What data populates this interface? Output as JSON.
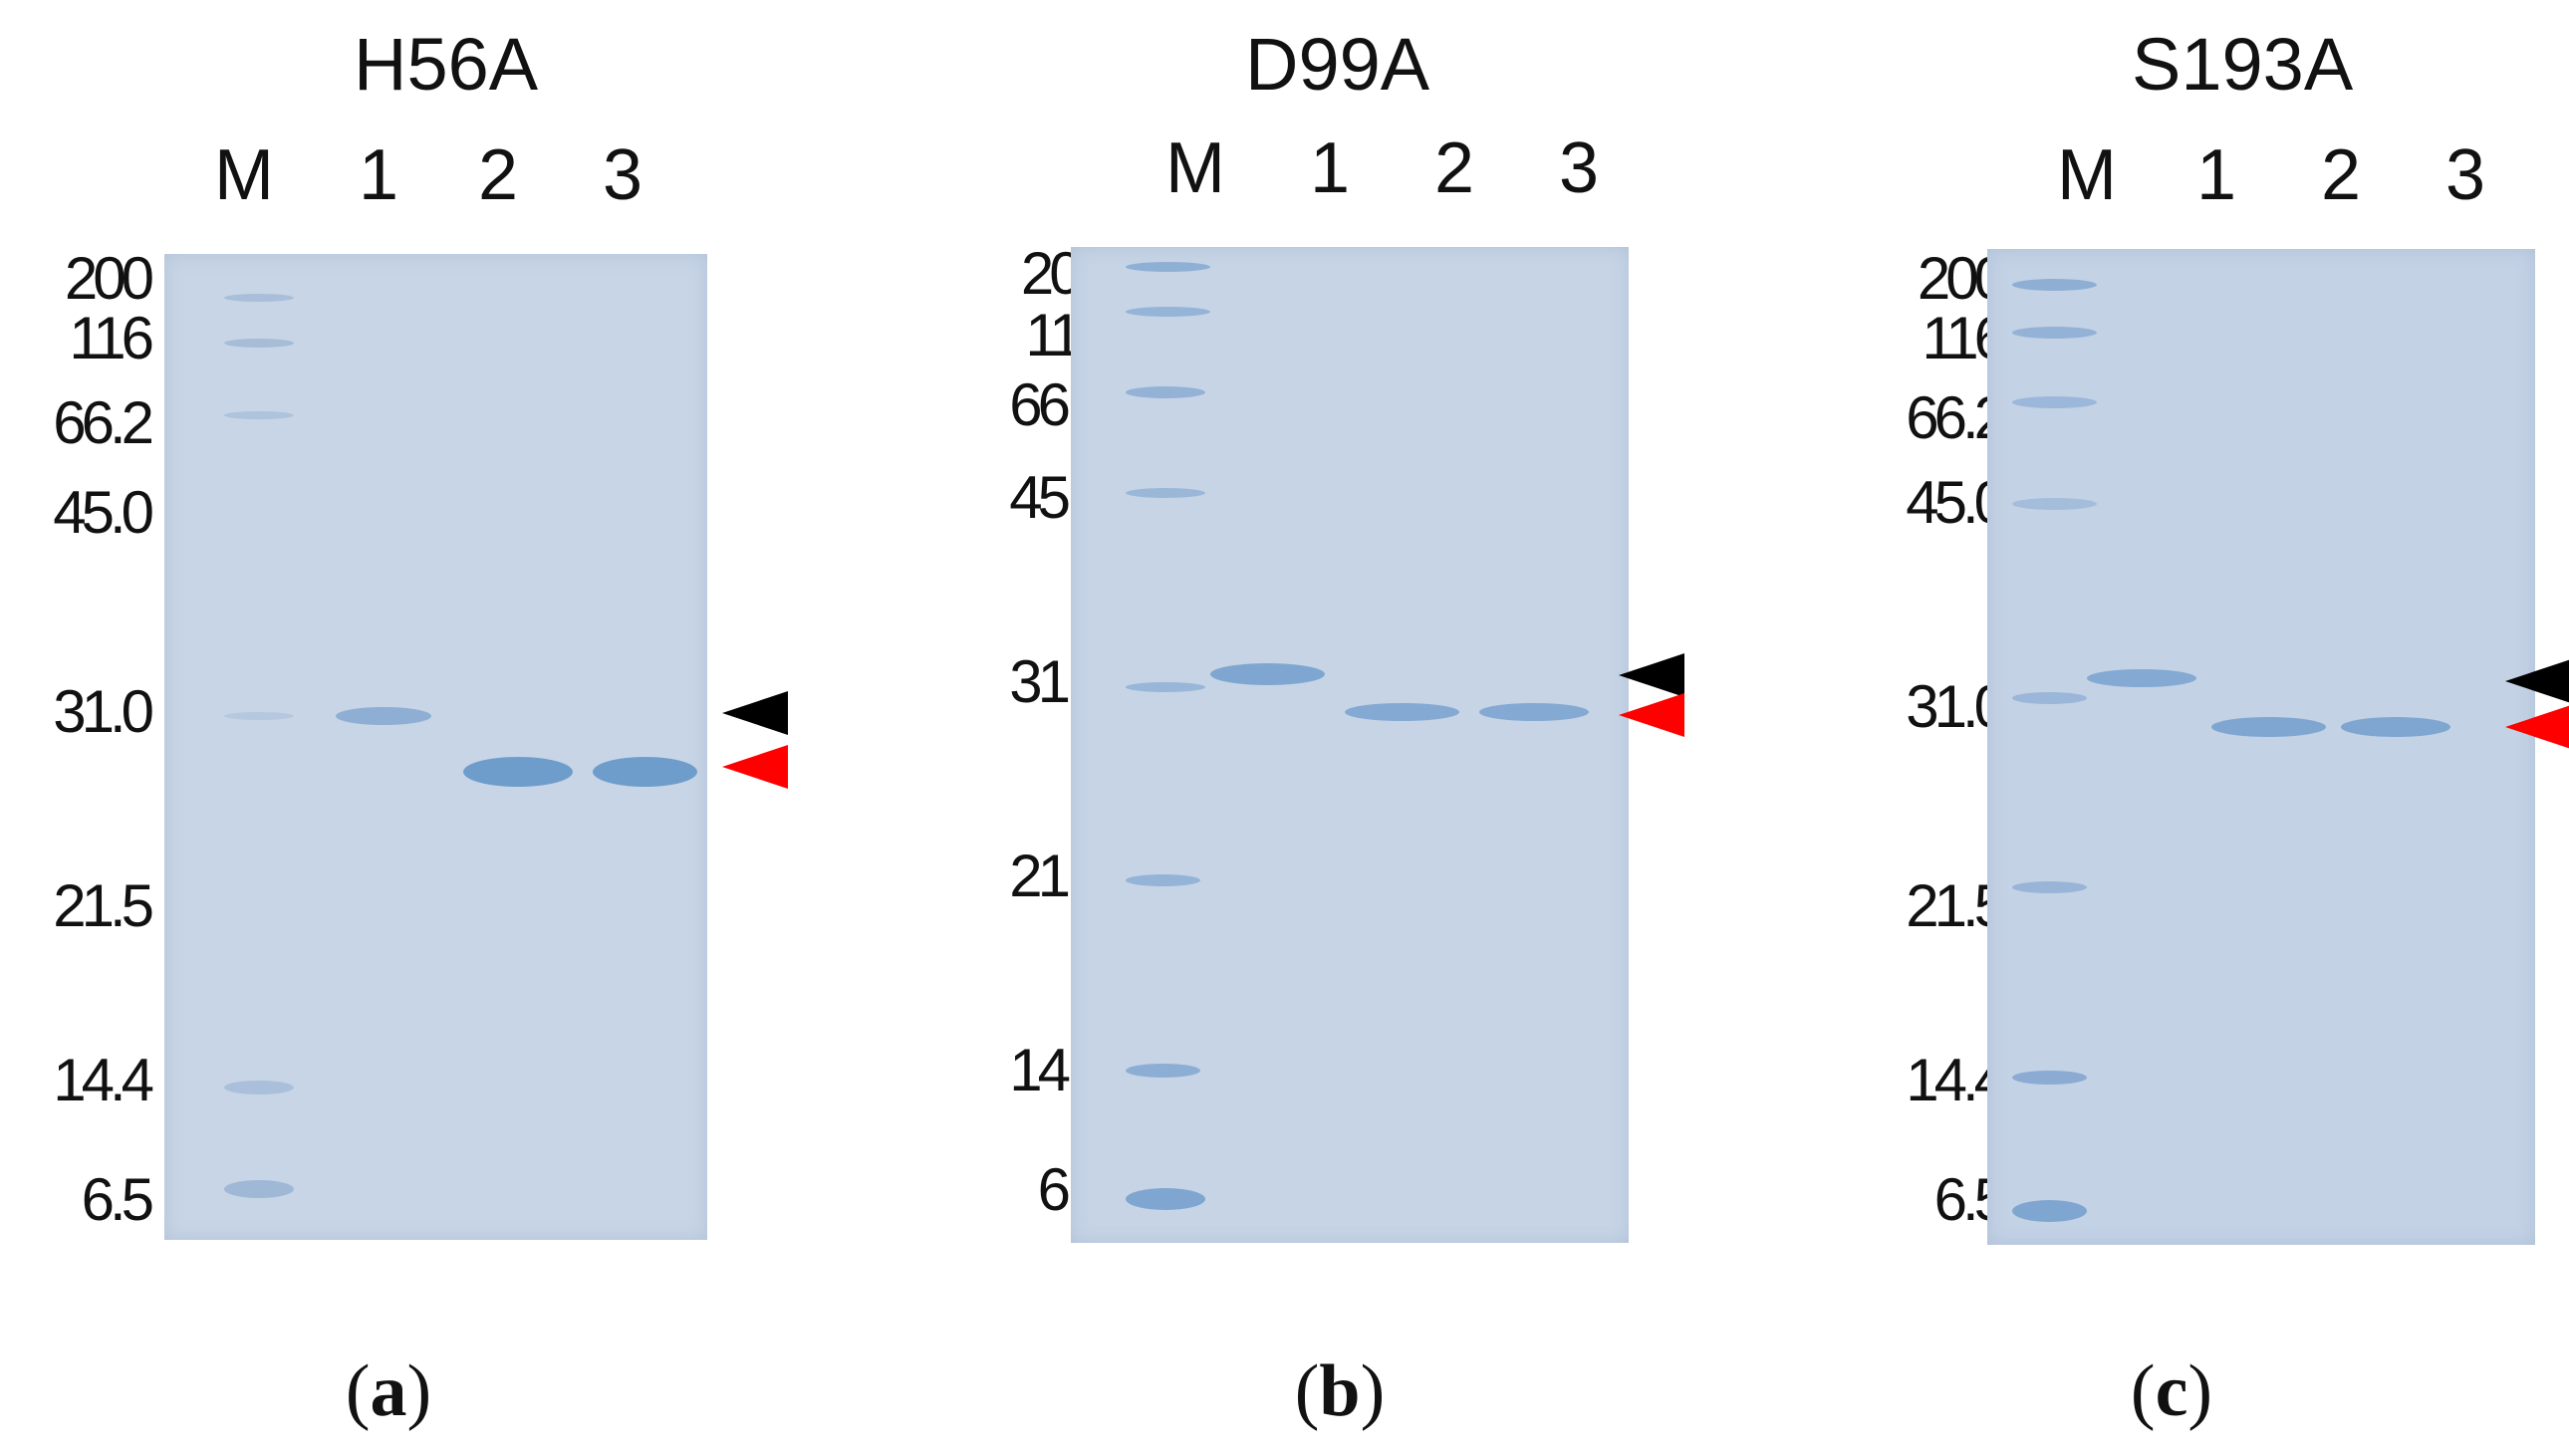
{
  "panels": [
    {
      "id": "a",
      "title": "H56A",
      "caption_letter": "a"
    },
    {
      "id": "b",
      "title": "D99A",
      "caption_letter": "b"
    },
    {
      "id": "c",
      "title": "S193A",
      "caption_letter": "c"
    }
  ],
  "lane_labels": [
    "M",
    "1",
    "2",
    "3"
  ],
  "marker_labels": [
    "200",
    "116",
    "66.2",
    "45.0",
    "31.0",
    "21.5",
    "14.4",
    "6.5"
  ],
  "caption_format": {
    "open": "(",
    "close": ")"
  },
  "colors": {
    "gel_background": "#c5d3e4",
    "band": "#7fa6d0",
    "arrow_upper": "#000000",
    "arrow_lower": "#ff0000"
  }
}
